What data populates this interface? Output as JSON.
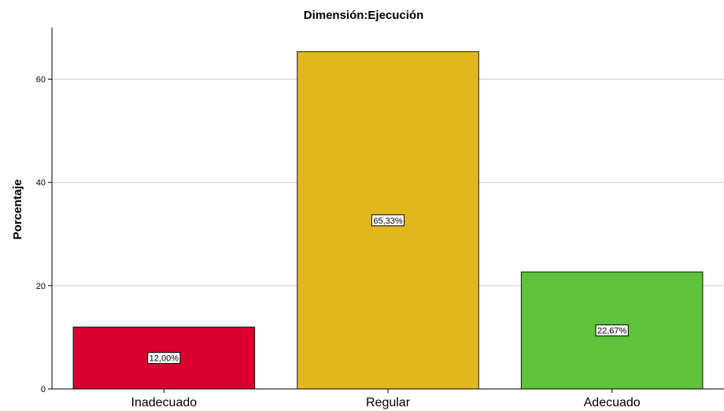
{
  "chart_data": {
    "type": "bar",
    "title": "Dimensión:Ejecución",
    "xlabel": "",
    "ylabel": "Porcentaje",
    "categories": [
      "Inadecuado",
      "Regular",
      "Adecuado"
    ],
    "values": [
      12.0,
      65.33,
      22.67
    ],
    "value_labels": [
      "12,00%",
      "65,33%",
      "22,67%"
    ],
    "colors": [
      "#d9002f",
      "#e0b81e",
      "#5ec23a"
    ],
    "ylim": [
      0,
      70
    ],
    "yticks": [
      0,
      20,
      40,
      60
    ],
    "ytick_labels": [
      "0",
      "20",
      "40",
      "60"
    ],
    "grid": true,
    "legend": "none"
  }
}
